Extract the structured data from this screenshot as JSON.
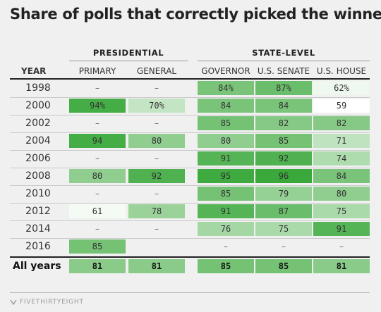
{
  "title": "Share of polls that correctly picked the winner",
  "groups": [
    {
      "label": "PRESIDENTIAL"
    },
    {
      "label": "STATE-LEVEL"
    }
  ],
  "header": {
    "year": "YEAR",
    "columns": [
      "PRIMARY",
      "GENERAL",
      "GOVERNOR",
      "U.S. SENATE",
      "U.S. HOUSE"
    ]
  },
  "chart_data": {
    "type": "table",
    "title": "Share of polls that correctly picked the winner",
    "column_groups": [
      {
        "name": "PRESIDENTIAL",
        "columns": [
          "PRIMARY",
          "GENERAL"
        ]
      },
      {
        "name": "STATE-LEVEL",
        "columns": [
          "GOVERNOR",
          "U.S. SENATE",
          "U.S. HOUSE"
        ]
      }
    ],
    "columns": [
      "PRIMARY",
      "GENERAL",
      "GOVERNOR",
      "U.S. SENATE",
      "U.S. HOUSE"
    ],
    "rows": [
      {
        "year": "1998",
        "cells": [
          "–",
          "–",
          "84%",
          "87%",
          "62%"
        ],
        "values": [
          null,
          null,
          84,
          87,
          62
        ]
      },
      {
        "year": "2000",
        "cells": [
          "94%",
          "70%",
          "84",
          "84",
          "59"
        ],
        "values": [
          94,
          70,
          84,
          84,
          59
        ]
      },
      {
        "year": "2002",
        "cells": [
          "–",
          "–",
          "85",
          "82",
          "82"
        ],
        "values": [
          null,
          null,
          85,
          82,
          82
        ]
      },
      {
        "year": "2004",
        "cells": [
          "94",
          "80",
          "80",
          "85",
          "71"
        ],
        "values": [
          94,
          80,
          80,
          85,
          71
        ]
      },
      {
        "year": "2006",
        "cells": [
          "–",
          "–",
          "91",
          "92",
          "74"
        ],
        "values": [
          null,
          null,
          91,
          92,
          74
        ]
      },
      {
        "year": "2008",
        "cells": [
          "80",
          "92",
          "95",
          "96",
          "84"
        ],
        "values": [
          80,
          92,
          95,
          96,
          84
        ]
      },
      {
        "year": "2010",
        "cells": [
          "–",
          "–",
          "85",
          "79",
          "80"
        ],
        "values": [
          null,
          null,
          85,
          79,
          80
        ]
      },
      {
        "year": "2012",
        "cells": [
          "61",
          "78",
          "91",
          "87",
          "75"
        ],
        "values": [
          61,
          78,
          91,
          87,
          75
        ]
      },
      {
        "year": "2014",
        "cells": [
          "–",
          "–",
          "76",
          "75",
          "91"
        ],
        "values": [
          null,
          null,
          76,
          75,
          91
        ]
      },
      {
        "year": "2016",
        "cells": [
          "85",
          "",
          "–",
          "–",
          "–"
        ],
        "values": [
          85,
          null,
          null,
          null,
          null
        ]
      }
    ],
    "totals": {
      "label": "All years",
      "cells": [
        "81",
        "81",
        "85",
        "85",
        "81"
      ],
      "values": [
        81,
        81,
        85,
        85,
        81
      ]
    },
    "color_scale": {
      "low": "#ffffff",
      "high": "#3aa83a",
      "min": 59,
      "max": 96
    }
  },
  "footer": {
    "brand": "FIVETHIRTYEIGHT"
  }
}
